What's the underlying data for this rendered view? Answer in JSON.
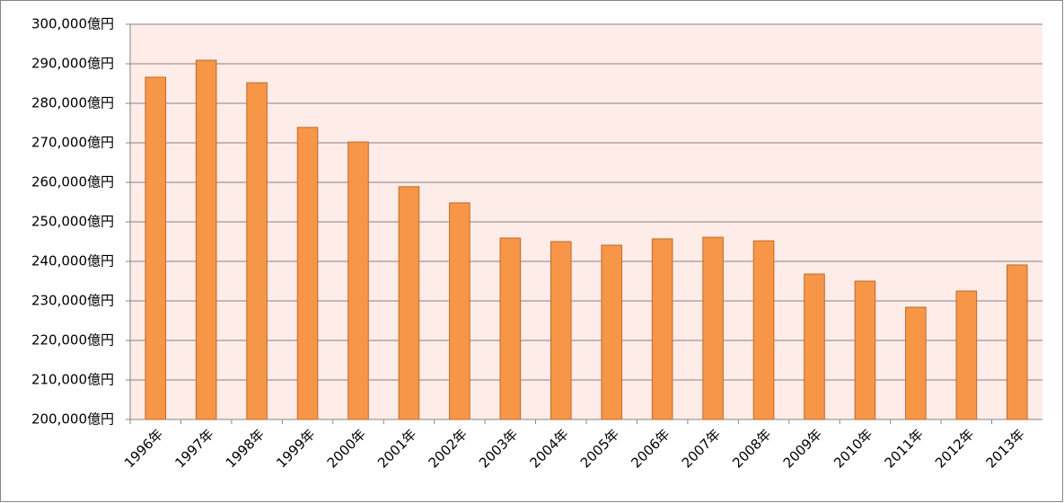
{
  "chart_data": {
    "type": "bar",
    "categories": [
      "1996年",
      "1997年",
      "1998年",
      "1999年",
      "2000年",
      "2001年",
      "2002年",
      "2003年",
      "2004年",
      "2005年",
      "2006年",
      "2007年",
      "2008年",
      "2009年",
      "2010年",
      "2011年",
      "2012年",
      "2013年"
    ],
    "values": [
      286600,
      290900,
      285200,
      273900,
      270200,
      258900,
      254800,
      245900,
      245000,
      244100,
      245700,
      246100,
      245200,
      236800,
      235000,
      228400,
      232500,
      239100
    ],
    "color": "#f79646",
    "ylim": [
      200000,
      300000
    ],
    "yticks": [
      {
        "value": 200000,
        "label": "200,000億円"
      },
      {
        "value": 210000,
        "label": "210,000億円"
      },
      {
        "value": 220000,
        "label": "220,000億円"
      },
      {
        "value": 230000,
        "label": "230,000億円"
      },
      {
        "value": 240000,
        "label": "240,000億円"
      },
      {
        "value": 250000,
        "label": "250,000億円"
      },
      {
        "value": 260000,
        "label": "260,000億円"
      },
      {
        "value": 270000,
        "label": "270,000億円"
      },
      {
        "value": 280000,
        "label": "280,000億円"
      },
      {
        "value": 290000,
        "label": "290,000億円"
      },
      {
        "value": 300000,
        "label": "300,000億円"
      }
    ],
    "grid": true
  }
}
